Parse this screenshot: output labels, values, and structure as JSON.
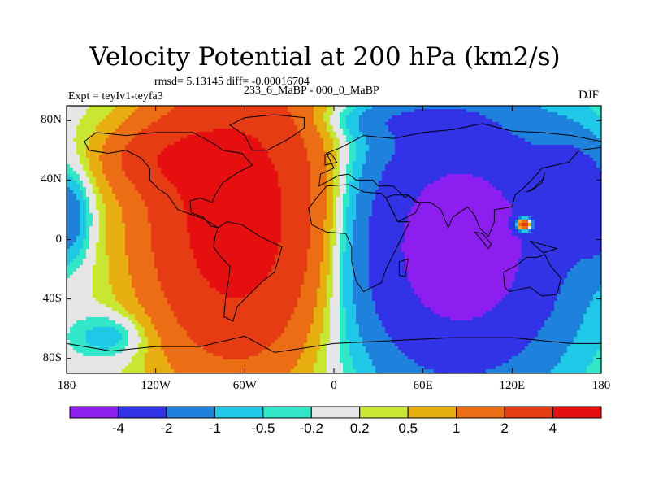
{
  "chart_data": {
    "type": "heatmap",
    "title": "Velocity Potential at 200 hPa (km2/s)",
    "stats": "rmsd= 5.13145 diff= -0.00016704",
    "experiment": "Expt = teyIv1-teyfa3",
    "period": "233_6_MaBP - 000_0_MaBP",
    "season": "DJF",
    "xlabel": "",
    "ylabel": "",
    "xlim": [
      -180,
      180
    ],
    "ylim": [
      -90,
      90
    ],
    "x_ticks": [
      {
        "value": -180,
        "label": "180"
      },
      {
        "value": -120,
        "label": "120W"
      },
      {
        "value": -60,
        "label": "60W"
      },
      {
        "value": 0,
        "label": "0"
      },
      {
        "value": 60,
        "label": "60E"
      },
      {
        "value": 120,
        "label": "120E"
      },
      {
        "value": 180,
        "label": "180"
      }
    ],
    "y_ticks": [
      {
        "value": 80,
        "label": "80N"
      },
      {
        "value": 40,
        "label": "40N"
      },
      {
        "value": 0,
        "label": "0"
      },
      {
        "value": -40,
        "label": "40S"
      },
      {
        "value": -80,
        "label": "80S"
      }
    ],
    "colorbar": {
      "levels": [
        -4,
        -2,
        -1,
        -0.5,
        -0.2,
        0.2,
        0.5,
        1,
        2,
        4
      ],
      "labels": [
        "-4",
        "-2",
        "-1",
        "-0.5",
        "-0.2",
        "0.2",
        "0.5",
        "1",
        "2",
        "4"
      ],
      "colors": [
        "#8c1ef0",
        "#3232e6",
        "#1e82dc",
        "#1ec8e6",
        "#32e6c8",
        "#e6e6e6",
        "#c8e632",
        "#e6af0f",
        "#eb6e14",
        "#e63c14",
        "#e60f0f"
      ]
    },
    "field_description": {
      "positive_center": {
        "lon": -60,
        "lat": 5,
        "value": 5
      },
      "negative_center": {
        "lon": 75,
        "lat": -5,
        "value": -5
      },
      "white_spot_near": {
        "lon": 128,
        "lat": 10
      }
    }
  }
}
